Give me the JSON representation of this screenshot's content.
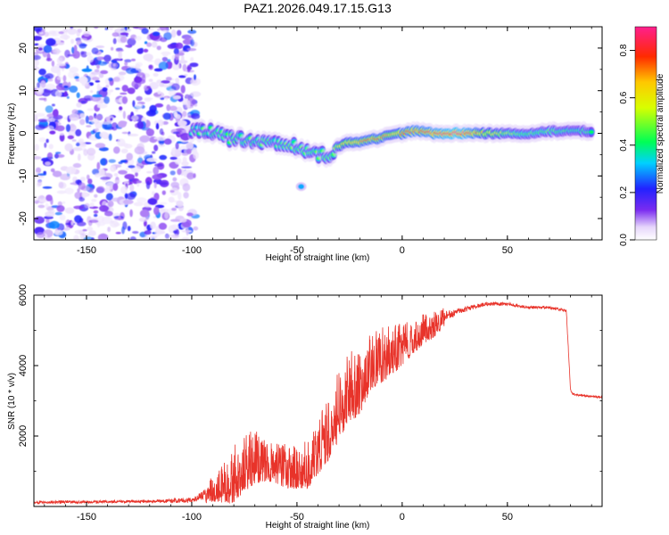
{
  "chart_data": [
    {
      "type": "heatmap",
      "title": "PAZ1.2026.049.17.15.G13",
      "xlabel": "Height of straight line (km)",
      "ylabel": "Frequency (Hz)",
      "xlim": [
        -175,
        95
      ],
      "ylim": [
        -25,
        25
      ],
      "xticks": [
        -150,
        -100,
        -50,
        0,
        50
      ],
      "yticks": [
        -20,
        -10,
        0,
        10,
        20
      ],
      "colorbar": {
        "label": "Normalized spectral amplitude",
        "range": [
          0,
          0.9
        ],
        "ticks": [
          "0.0",
          "0.2",
          "0.4",
          "0.6",
          "0.8"
        ]
      },
      "noise_region_x": [
        -175,
        -98
      ],
      "signal_ridge": [
        {
          "x": -100,
          "freq": 0.5,
          "amp": 0.35
        },
        {
          "x": -95,
          "freq": 1.0,
          "amp": 0.4
        },
        {
          "x": -90,
          "freq": 0.5,
          "amp": 0.4
        },
        {
          "x": -85,
          "freq": -0.5,
          "amp": 0.45
        },
        {
          "x": -80,
          "freq": -1.5,
          "amp": 0.4
        },
        {
          "x": -75,
          "freq": -1.5,
          "amp": 0.45
        },
        {
          "x": -70,
          "freq": -2.0,
          "amp": 0.4
        },
        {
          "x": -65,
          "freq": -1.5,
          "amp": 0.45
        },
        {
          "x": -60,
          "freq": -2.0,
          "amp": 0.4
        },
        {
          "x": -55,
          "freq": -2.5,
          "amp": 0.45
        },
        {
          "x": -50,
          "freq": -3.0,
          "amp": 0.45
        },
        {
          "x": -45,
          "freq": -4.0,
          "amp": 0.45
        },
        {
          "x": -40,
          "freq": -5.0,
          "amp": 0.45
        },
        {
          "x": -35,
          "freq": -5.5,
          "amp": 0.45
        },
        {
          "x": -30,
          "freq": -3.0,
          "amp": 0.55
        },
        {
          "x": -25,
          "freq": -2.0,
          "amp": 0.65
        },
        {
          "x": -20,
          "freq": -2.0,
          "amp": 0.7
        },
        {
          "x": -15,
          "freq": -1.5,
          "amp": 0.7
        },
        {
          "x": -10,
          "freq": -1.0,
          "amp": 0.7
        },
        {
          "x": -5,
          "freq": -0.5,
          "amp": 0.65
        },
        {
          "x": 0,
          "freq": 0.0,
          "amp": 0.7
        },
        {
          "x": 5,
          "freq": 0.5,
          "amp": 0.75
        },
        {
          "x": 10,
          "freq": 0.5,
          "amp": 0.75
        },
        {
          "x": 15,
          "freq": 0.0,
          "amp": 0.8
        },
        {
          "x": 20,
          "freq": 0.0,
          "amp": 0.85
        },
        {
          "x": 25,
          "freq": 0.0,
          "amp": 0.9
        },
        {
          "x": 30,
          "freq": 0.0,
          "amp": 0.85
        },
        {
          "x": 40,
          "freq": 0.0,
          "amp": 0.6
        },
        {
          "x": 50,
          "freq": 0.0,
          "amp": 0.5
        },
        {
          "x": 60,
          "freq": 0.0,
          "amp": 0.45
        },
        {
          "x": 70,
          "freq": 0.5,
          "amp": 0.45
        },
        {
          "x": 80,
          "freq": 0.5,
          "amp": 0.4
        },
        {
          "x": 90,
          "freq": 0.5,
          "amp": 0.4
        }
      ],
      "side_blob": {
        "x": -48,
        "freq": -12.5,
        "amp": 0.3
      }
    },
    {
      "type": "line",
      "xlabel": "Height of straight line (km)",
      "ylabel": "SNR (10 * v/v)",
      "xlim": [
        -175,
        95
      ],
      "ylim": [
        0,
        6000
      ],
      "xticks": [
        -150,
        -100,
        -50,
        0,
        50
      ],
      "yticks": [
        2000,
        4000,
        6000
      ],
      "color": "#e8332a",
      "series": [
        {
          "name": "SNR",
          "x": [
            -175,
            -150,
            -120,
            -100,
            -95,
            -90,
            -85,
            -80,
            -75,
            -70,
            -65,
            -60,
            -55,
            -50,
            -45,
            -40,
            -35,
            -30,
            -25,
            -20,
            -15,
            -10,
            -5,
            0,
            5,
            10,
            15,
            20,
            25,
            30,
            40,
            50,
            60,
            70,
            78,
            80,
            81,
            85,
            95
          ],
          "y": [
            120,
            130,
            140,
            180,
            300,
            550,
            800,
            1000,
            1300,
            1500,
            1400,
            1300,
            1200,
            1200,
            1300,
            1800,
            2300,
            3000,
            3500,
            3700,
            4200,
            4400,
            4500,
            4700,
            4900,
            5100,
            5200,
            5400,
            5500,
            5600,
            5750,
            5750,
            5650,
            5650,
            5550,
            3300,
            3200,
            3150,
            3100
          ],
          "spread": [
            80,
            80,
            80,
            150,
            250,
            400,
            700,
            900,
            900,
            850,
            700,
            650,
            700,
            700,
            800,
            900,
            1000,
            1100,
            1100,
            1100,
            900,
            900,
            800,
            700,
            600,
            500,
            400,
            300,
            200,
            150,
            100,
            100,
            80,
            80,
            80,
            60,
            60,
            60,
            60
          ]
        }
      ]
    }
  ]
}
